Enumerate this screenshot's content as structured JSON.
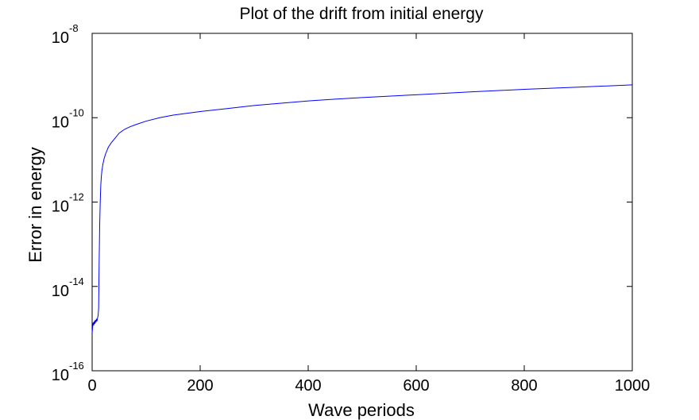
{
  "chart_data": {
    "type": "line",
    "title": "Plot of the drift from initial energy",
    "xlabel": "Wave periods",
    "ylabel": "Error in energy",
    "xlim": [
      0,
      1000
    ],
    "ylim": [
      1e-16,
      1e-08
    ],
    "yscale": "log",
    "grid": false,
    "xticks": [
      0,
      200,
      400,
      600,
      800,
      1000
    ],
    "xtick_labels": [
      "0",
      "200",
      "400",
      "600",
      "800",
      "1000"
    ],
    "yticks": [
      1e-16,
      1e-14,
      1e-12,
      1e-10,
      1e-08
    ],
    "ytick_labels": [
      {
        "base": "10",
        "exp": "-16"
      },
      {
        "base": "10",
        "exp": "-14"
      },
      {
        "base": "10",
        "exp": "-12"
      },
      {
        "base": "10",
        "exp": "-10"
      },
      {
        "base": "10",
        "exp": "-8"
      }
    ],
    "series": [
      {
        "color": "#0000ff",
        "x": [
          0,
          1,
          2,
          3,
          4,
          5,
          6,
          7,
          8,
          9,
          10,
          11,
          12,
          13,
          14,
          15,
          16,
          17,
          18,
          20,
          22,
          25,
          30,
          35,
          40,
          50,
          60,
          70,
          80,
          100,
          125,
          150,
          200,
          250,
          300,
          350,
          400,
          450,
          500,
          600,
          700,
          800,
          900,
          1000
        ],
        "y": [
          8e-16,
          1.1e-15,
          1.4e-15,
          1.2e-15,
          1.5e-15,
          1.3e-15,
          1.6e-15,
          1.4e-15,
          1.7e-15,
          1.5e-15,
          1.8e-15,
          2e-15,
          3e-15,
          4e-14,
          3e-13,
          1e-12,
          2.5e-12,
          4e-12,
          5.5e-12,
          8e-12,
          1.05e-11,
          1.4e-11,
          2e-11,
          2.5e-11,
          3e-11,
          4.3e-11,
          5.3e-11,
          6.1e-11,
          6.8e-11,
          8.3e-11,
          1e-10,
          1.15e-10,
          1.4e-10,
          1.65e-10,
          1.95e-10,
          2.2e-10,
          2.5e-10,
          2.75e-10,
          3e-10,
          3.5e-10,
          4.1e-10,
          4.7e-10,
          5.3e-10,
          6e-10
        ]
      }
    ]
  }
}
